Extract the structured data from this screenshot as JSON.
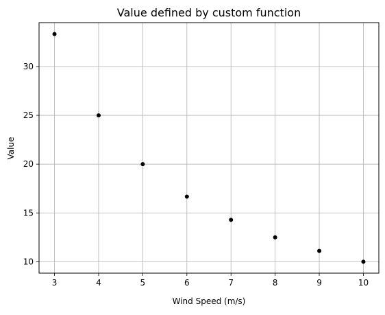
{
  "chart_data": {
    "type": "scatter",
    "title": "Value defined by custom function",
    "xlabel": "Wind Speed (m/s)",
    "ylabel": "Value",
    "x_ticks": [
      3,
      4,
      5,
      6,
      7,
      8,
      9,
      10
    ],
    "y_ticks": [
      10,
      15,
      20,
      25,
      30
    ],
    "xlim": [
      2.65,
      10.35
    ],
    "ylim": [
      8.83,
      34.5
    ],
    "grid": true,
    "marker_color": "#000000",
    "grid_color": "#b0b0b0",
    "points": [
      {
        "x": 3,
        "y": 33.33
      },
      {
        "x": 4,
        "y": 25.0
      },
      {
        "x": 5,
        "y": 20.0
      },
      {
        "x": 6,
        "y": 16.67
      },
      {
        "x": 7,
        "y": 14.29
      },
      {
        "x": 8,
        "y": 12.5
      },
      {
        "x": 9,
        "y": 11.11
      },
      {
        "x": 10,
        "y": 10.0
      }
    ]
  }
}
